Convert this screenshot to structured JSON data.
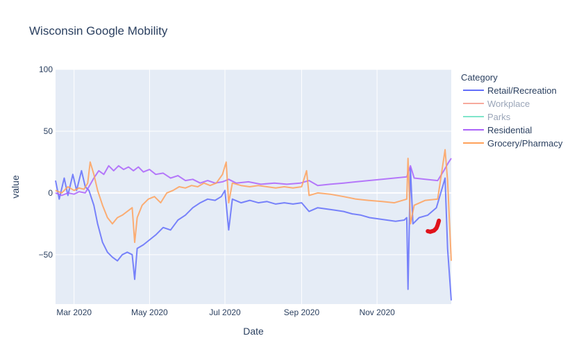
{
  "chart_data": {
    "type": "line",
    "title": "Wisconsin Google Mobility",
    "xlabel": "Date",
    "ylabel": "value",
    "xlim": [
      "2020-02-15",
      "2020-12-31"
    ],
    "ylim": [
      -90,
      100
    ],
    "x_tick_labels": [
      {
        "date": "2020-03-01",
        "label": "Mar 2020"
      },
      {
        "date": "2020-05-01",
        "label": "May 2020"
      },
      {
        "date": "2020-07-01",
        "label": "Jul 2020"
      },
      {
        "date": "2020-09-01",
        "label": "Sep 2020"
      },
      {
        "date": "2020-11-01",
        "label": "Nov 2020"
      }
    ],
    "y_ticks": [
      -50,
      0,
      50,
      100
    ],
    "grid": true,
    "legend": {
      "title": "Category",
      "position": "right"
    },
    "series": [
      {
        "name": "Retail/Recreation",
        "color": "#636efa",
        "visible": true,
        "points": [
          [
            "2020-02-15",
            10
          ],
          [
            "2020-02-18",
            -5
          ],
          [
            "2020-02-22",
            12
          ],
          [
            "2020-02-25",
            -2
          ],
          [
            "2020-02-29",
            15
          ],
          [
            "2020-03-03",
            2
          ],
          [
            "2020-03-07",
            18
          ],
          [
            "2020-03-10",
            5
          ],
          [
            "2020-03-13",
            2
          ],
          [
            "2020-03-17",
            -10
          ],
          [
            "2020-03-20",
            -25
          ],
          [
            "2020-03-24",
            -40
          ],
          [
            "2020-03-28",
            -48
          ],
          [
            "2020-04-01",
            -52
          ],
          [
            "2020-04-05",
            -55
          ],
          [
            "2020-04-09",
            -50
          ],
          [
            "2020-04-13",
            -48
          ],
          [
            "2020-04-17",
            -50
          ],
          [
            "2020-04-19",
            -70
          ],
          [
            "2020-04-21",
            -45
          ],
          [
            "2020-04-26",
            -42
          ],
          [
            "2020-05-01",
            -38
          ],
          [
            "2020-05-06",
            -34
          ],
          [
            "2020-05-12",
            -28
          ],
          [
            "2020-05-18",
            -30
          ],
          [
            "2020-05-24",
            -22
          ],
          [
            "2020-05-30",
            -18
          ],
          [
            "2020-06-05",
            -12
          ],
          [
            "2020-06-11",
            -8
          ],
          [
            "2020-06-17",
            -5
          ],
          [
            "2020-06-23",
            -6
          ],
          [
            "2020-06-28",
            -3
          ],
          [
            "2020-07-01",
            2
          ],
          [
            "2020-07-04",
            -30
          ],
          [
            "2020-07-07",
            -5
          ],
          [
            "2020-07-14",
            -8
          ],
          [
            "2020-07-21",
            -6
          ],
          [
            "2020-07-28",
            -8
          ],
          [
            "2020-08-04",
            -7
          ],
          [
            "2020-08-11",
            -9
          ],
          [
            "2020-08-18",
            -8
          ],
          [
            "2020-08-25",
            -9
          ],
          [
            "2020-09-01",
            -8
          ],
          [
            "2020-09-07",
            -15
          ],
          [
            "2020-09-14",
            -12
          ],
          [
            "2020-09-21",
            -13
          ],
          [
            "2020-09-28",
            -14
          ],
          [
            "2020-10-05",
            -15
          ],
          [
            "2020-10-12",
            -17
          ],
          [
            "2020-10-19",
            -18
          ],
          [
            "2020-10-26",
            -20
          ],
          [
            "2020-11-02",
            -21
          ],
          [
            "2020-11-09",
            -22
          ],
          [
            "2020-11-16",
            -23
          ],
          [
            "2020-11-23",
            -22
          ],
          [
            "2020-11-25",
            -20
          ],
          [
            "2020-11-26",
            -78
          ],
          [
            "2020-11-28",
            20
          ],
          [
            "2020-11-30",
            -25
          ],
          [
            "2020-12-05",
            -20
          ],
          [
            "2020-12-12",
            -18
          ],
          [
            "2020-12-19",
            -12
          ],
          [
            "2020-12-24",
            5
          ],
          [
            "2020-12-26",
            12
          ],
          [
            "2020-12-28",
            -45
          ],
          [
            "2020-12-31",
            -87
          ]
        ]
      },
      {
        "name": "Workplace",
        "color": "#ef553b",
        "visible": false,
        "points": []
      },
      {
        "name": "Parks",
        "color": "#00cc96",
        "visible": false,
        "points": []
      },
      {
        "name": "Residential",
        "color": "#ab63fa",
        "visible": true,
        "points": [
          [
            "2020-02-15",
            0
          ],
          [
            "2020-02-20",
            -2
          ],
          [
            "2020-02-25",
            0
          ],
          [
            "2020-03-01",
            -1
          ],
          [
            "2020-03-05",
            1
          ],
          [
            "2020-03-10",
            0
          ],
          [
            "2020-03-13",
            5
          ],
          [
            "2020-03-17",
            12
          ],
          [
            "2020-03-21",
            18
          ],
          [
            "2020-03-25",
            15
          ],
          [
            "2020-03-29",
            22
          ],
          [
            "2020-04-02",
            18
          ],
          [
            "2020-04-06",
            22
          ],
          [
            "2020-04-10",
            19
          ],
          [
            "2020-04-14",
            21
          ],
          [
            "2020-04-18",
            18
          ],
          [
            "2020-04-22",
            21
          ],
          [
            "2020-04-26",
            17
          ],
          [
            "2020-05-01",
            19
          ],
          [
            "2020-05-06",
            15
          ],
          [
            "2020-05-12",
            16
          ],
          [
            "2020-05-18",
            12
          ],
          [
            "2020-05-24",
            14
          ],
          [
            "2020-05-30",
            10
          ],
          [
            "2020-06-05",
            11
          ],
          [
            "2020-06-11",
            8
          ],
          [
            "2020-06-17",
            10
          ],
          [
            "2020-06-23",
            8
          ],
          [
            "2020-06-29",
            9
          ],
          [
            "2020-07-04",
            11
          ],
          [
            "2020-07-10",
            8
          ],
          [
            "2020-07-20",
            9
          ],
          [
            "2020-07-30",
            7
          ],
          [
            "2020-08-10",
            8
          ],
          [
            "2020-08-20",
            7
          ],
          [
            "2020-08-31",
            8
          ],
          [
            "2020-09-07",
            10
          ],
          [
            "2020-09-14",
            6
          ],
          [
            "2020-09-24",
            7
          ],
          [
            "2020-10-05",
            8
          ],
          [
            "2020-10-15",
            9
          ],
          [
            "2020-10-25",
            10
          ],
          [
            "2020-11-05",
            11
          ],
          [
            "2020-11-15",
            12
          ],
          [
            "2020-11-25",
            13
          ],
          [
            "2020-11-28",
            22
          ],
          [
            "2020-12-01",
            12
          ],
          [
            "2020-12-10",
            11
          ],
          [
            "2020-12-20",
            10
          ],
          [
            "2020-12-25",
            18
          ],
          [
            "2020-12-29",
            25
          ],
          [
            "2020-12-31",
            28
          ]
        ]
      },
      {
        "name": "Grocery/Pharmacy",
        "color": "#ffa15a",
        "visible": true,
        "points": [
          [
            "2020-02-15",
            2
          ],
          [
            "2020-02-20",
            0
          ],
          [
            "2020-02-25",
            5
          ],
          [
            "2020-03-01",
            2
          ],
          [
            "2020-03-05",
            4
          ],
          [
            "2020-03-09",
            3
          ],
          [
            "2020-03-12",
            8
          ],
          [
            "2020-03-14",
            25
          ],
          [
            "2020-03-17",
            15
          ],
          [
            "2020-03-20",
            2
          ],
          [
            "2020-03-24",
            -10
          ],
          [
            "2020-03-28",
            -20
          ],
          [
            "2020-04-01",
            -25
          ],
          [
            "2020-04-05",
            -20
          ],
          [
            "2020-04-09",
            -18
          ],
          [
            "2020-04-13",
            -15
          ],
          [
            "2020-04-17",
            -12
          ],
          [
            "2020-04-19",
            -40
          ],
          [
            "2020-04-21",
            -20
          ],
          [
            "2020-04-25",
            -10
          ],
          [
            "2020-04-30",
            -5
          ],
          [
            "2020-05-05",
            -3
          ],
          [
            "2020-05-10",
            -8
          ],
          [
            "2020-05-15",
            0
          ],
          [
            "2020-05-20",
            2
          ],
          [
            "2020-05-25",
            5
          ],
          [
            "2020-05-30",
            4
          ],
          [
            "2020-06-04",
            6
          ],
          [
            "2020-06-09",
            5
          ],
          [
            "2020-06-14",
            8
          ],
          [
            "2020-06-19",
            6
          ],
          [
            "2020-06-24",
            8
          ],
          [
            "2020-06-29",
            15
          ],
          [
            "2020-07-02",
            25
          ],
          [
            "2020-07-04",
            -8
          ],
          [
            "2020-07-07",
            8
          ],
          [
            "2020-07-14",
            6
          ],
          [
            "2020-07-21",
            5
          ],
          [
            "2020-07-28",
            6
          ],
          [
            "2020-08-04",
            5
          ],
          [
            "2020-08-11",
            4
          ],
          [
            "2020-08-18",
            5
          ],
          [
            "2020-08-25",
            4
          ],
          [
            "2020-09-01",
            5
          ],
          [
            "2020-09-05",
            18
          ],
          [
            "2020-09-07",
            -2
          ],
          [
            "2020-09-14",
            0
          ],
          [
            "2020-09-24",
            -1
          ],
          [
            "2020-10-05",
            -3
          ],
          [
            "2020-10-15",
            -5
          ],
          [
            "2020-10-25",
            -6
          ],
          [
            "2020-11-05",
            -7
          ],
          [
            "2020-11-15",
            -8
          ],
          [
            "2020-11-25",
            -5
          ],
          [
            "2020-11-26",
            28
          ],
          [
            "2020-11-28",
            -25
          ],
          [
            "2020-12-01",
            -10
          ],
          [
            "2020-12-10",
            -6
          ],
          [
            "2020-12-20",
            -5
          ],
          [
            "2020-12-26",
            35
          ],
          [
            "2020-12-28",
            10
          ],
          [
            "2020-12-31",
            -55
          ]
        ]
      }
    ],
    "annotation_stroke": {
      "color": "#e0131b",
      "points": [
        [
          "2020-12-12",
          -31
        ],
        [
          "2020-12-14",
          -31.5
        ],
        [
          "2020-12-17",
          -30.5
        ],
        [
          "2020-12-19",
          -28.5
        ],
        [
          "2020-12-20",
          -26
        ],
        [
          "2020-12-21",
          -22.5
        ]
      ]
    }
  }
}
